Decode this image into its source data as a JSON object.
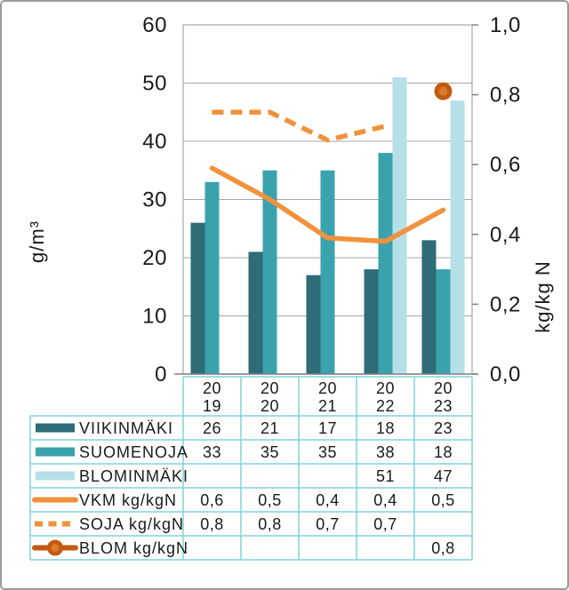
{
  "chart_data": {
    "type": "bar",
    "subtype": "combo bar + line, dual axis",
    "categories": [
      "2019",
      "2020",
      "2021",
      "2022",
      "2023"
    ],
    "bar_series": [
      {
        "name": "VIIKINMÄKI",
        "color": "#2E6C78",
        "values": [
          26,
          21,
          17,
          18,
          23
        ]
      },
      {
        "name": "SUOMENOJA",
        "color": "#3AA2AC",
        "values": [
          33,
          35,
          35,
          38,
          18
        ]
      },
      {
        "name": "BLOMINMÄKI",
        "color": "#B5E0E8",
        "values": [
          null,
          null,
          null,
          51,
          47
        ]
      }
    ],
    "line_series": [
      {
        "name": "VKM kg/kgN",
        "style": "solid",
        "color": "#F2913C",
        "values": [
          0.59,
          0.5,
          0.39,
          0.38,
          0.47
        ]
      },
      {
        "name": "SOJA kg/kgN",
        "style": "dashed",
        "color": "#F2913C",
        "values": [
          0.75,
          0.75,
          0.67,
          0.71,
          null
        ]
      },
      {
        "name": "BLOM kg/kgN",
        "style": "marker",
        "color": "#C35A11",
        "marker_fill": "#DD7B2B",
        "values": [
          null,
          null,
          null,
          null,
          0.81
        ]
      }
    ],
    "left_axis": {
      "label": "g/m³",
      "min": 0,
      "max": 60,
      "step": 10,
      "ticks": [
        "0",
        "10",
        "20",
        "30",
        "40",
        "50",
        "60"
      ]
    },
    "right_axis": {
      "label": "kg/kg N",
      "min": 0,
      "max": 1,
      "step": 0.2,
      "ticks": [
        "0,0",
        "0,2",
        "0,4",
        "0,6",
        "0,8",
        "1,0"
      ]
    },
    "grid": true,
    "legend_position": "table below chart"
  },
  "table": {
    "year_labels": [
      [
        "20",
        "19"
      ],
      [
        "20",
        "20"
      ],
      [
        "20",
        "21"
      ],
      [
        "20",
        "22"
      ],
      [
        "20",
        "23"
      ]
    ],
    "rows": [
      {
        "label": "VIIKINMÄKI",
        "swatch": "bar",
        "color": "#2E6C78",
        "cells": [
          "26",
          "21",
          "17",
          "18",
          "23"
        ]
      },
      {
        "label": "SUOMENOJA",
        "swatch": "bar",
        "color": "#3AA2AC",
        "cells": [
          "33",
          "35",
          "35",
          "38",
          "18"
        ]
      },
      {
        "label": "BLOMINMÄKI",
        "swatch": "bar",
        "color": "#B5E0E8",
        "cells": [
          "",
          "",
          "",
          "51",
          "47"
        ]
      },
      {
        "label": "VKM kg/kgN",
        "swatch": "line-solid",
        "color": "#F2913C",
        "cells": [
          "0,6",
          "0,5",
          "0,4",
          "0,4",
          "0,5"
        ]
      },
      {
        "label": "SOJA kg/kgN",
        "swatch": "line-dashed",
        "color": "#F2913C",
        "cells": [
          "0,8",
          "0,8",
          "0,7",
          "0,7",
          ""
        ]
      },
      {
        "label": "BLOM kg/kgN",
        "swatch": "line-marker",
        "color": "#C35A11",
        "marker_fill": "#DD7B2B",
        "cells": [
          "",
          "",
          "",
          "",
          "0,8"
        ]
      }
    ]
  },
  "colors": {
    "gridline": "#A6A6A6",
    "plot_border": "#A6A6A6",
    "axis_line": "#808080",
    "table_border": "#82D2D8",
    "frame_border": "#9B9B9B",
    "text": "#1A1A1A"
  }
}
